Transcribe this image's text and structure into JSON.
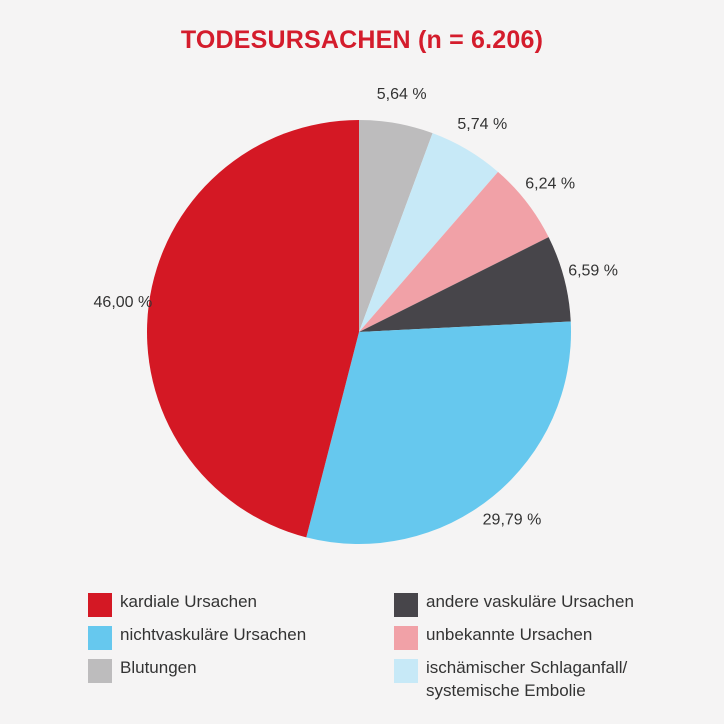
{
  "chart_data": {
    "type": "pie",
    "title": "TODESURSACHEN (n = 6.206)",
    "slices": [
      {
        "name": "Blutungen",
        "value": 5.64,
        "label": "5,64 %",
        "color": "#bdbcbd"
      },
      {
        "name": "ischämischer Schlaganfall/\nsystemische Embolie",
        "value": 5.74,
        "label": "5,74 %",
        "color": "#c7e9f7"
      },
      {
        "name": "unbekannte Ursachen",
        "value": 6.24,
        "label": "6,24 %",
        "color": "#f1a1a7"
      },
      {
        "name": "andere vaskuläre Ursachen",
        "value": 6.59,
        "label": "6,59 %",
        "color": "#47454a"
      },
      {
        "name": "nichtvaskuläre Ursachen",
        "value": 29.79,
        "label": "29,79 %",
        "color": "#66c8ee"
      },
      {
        "name": "kardiale Ursachen",
        "value": 46.0,
        "label": "46,00 %",
        "color": "#d41824"
      }
    ],
    "start_angle_deg": 0,
    "direction": "clockwise",
    "legend": [
      {
        "label": "kardiale Ursachen",
        "color": "#d41824"
      },
      {
        "label": "andere vaskuläre Ursachen",
        "color": "#47454a"
      },
      {
        "label": "nichtvaskuläre Ursachen",
        "color": "#66c8ee"
      },
      {
        "label": "unbekannte Ursachen",
        "color": "#f1a1a7"
      },
      {
        "label": "Blutungen",
        "color": "#bdbcbd"
      },
      {
        "label": "ischämischer Schlaganfall/\nsystemische Embolie",
        "color": "#c7e9f7"
      }
    ]
  }
}
